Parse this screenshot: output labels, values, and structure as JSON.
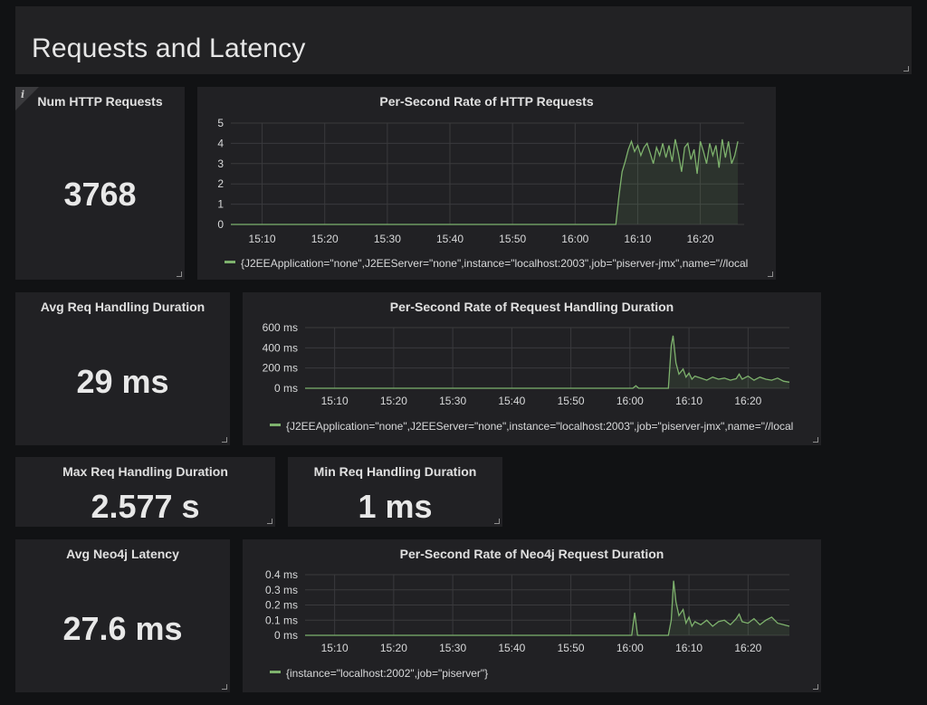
{
  "row": {
    "title": "Requests and Latency"
  },
  "colors": {
    "series": "#7eb26d",
    "panel": "#212124",
    "background": "#111214"
  },
  "stats": {
    "num_http_requests": {
      "title": "Num HTTP Requests",
      "value": "3768",
      "info_icon": "info-icon"
    },
    "avg_req_handling": {
      "title": "Avg Req Handling Duration",
      "value": "29 ms"
    },
    "max_req_handling": {
      "title": "Max Req Handling Duration",
      "value": "2.577 s"
    },
    "min_req_handling": {
      "title": "Min Req Handling Duration",
      "value": "1 ms"
    },
    "avg_neo4j_latency": {
      "title": "Avg Neo4j Latency",
      "value": "27.6 ms"
    }
  },
  "chart_data": [
    {
      "type": "area",
      "title": "Per-Second Rate of HTTP Requests",
      "x_ticks": [
        "15:10",
        "15:20",
        "15:30",
        "15:40",
        "15:50",
        "16:00",
        "16:10",
        "16:20"
      ],
      "y_ticks": [
        "0",
        "1",
        "2",
        "3",
        "4",
        "5"
      ],
      "ylim": [
        0,
        5
      ],
      "xlim_minutes": [
        0,
        82
      ],
      "grid": true,
      "legend": "bottom",
      "series": [
        {
          "name": "{J2EEApplication=\"none\",J2EEServer=\"none\",instance=\"localhost:2003\",job=\"piserver-jmx\",name=\"//local",
          "x": [
            0,
            61.5,
            62,
            62.5,
            63,
            63.5,
            64,
            64.5,
            65,
            65.5,
            66,
            66.5,
            67,
            67.5,
            68,
            68.5,
            69,
            69.5,
            70,
            70.5,
            71,
            71.5,
            72,
            72.5,
            73,
            73.5,
            74,
            74.5,
            75,
            75.5,
            76,
            76.5,
            77,
            77.5,
            78,
            78.5,
            79,
            79.5,
            80,
            80.5,
            81
          ],
          "y": [
            0,
            0,
            1.4,
            2.6,
            3.1,
            3.7,
            4.1,
            3.6,
            3.9,
            3.4,
            3.8,
            4.0,
            3.5,
            3.0,
            3.8,
            3.4,
            4.0,
            3.3,
            3.9,
            3.1,
            4.2,
            3.5,
            2.6,
            3.8,
            4.0,
            3.2,
            3.7,
            2.5,
            4.1,
            3.6,
            3.0,
            4.0,
            3.4,
            3.9,
            2.8,
            4.2,
            3.3,
            4.1,
            3.0,
            3.4,
            4.1
          ]
        }
      ]
    },
    {
      "type": "area",
      "title": "Per-Second Rate of Request Handling Duration",
      "x_ticks": [
        "15:10",
        "15:20",
        "15:30",
        "15:40",
        "15:50",
        "16:00",
        "16:10",
        "16:20"
      ],
      "y_ticks": [
        "0 ms",
        "200 ms",
        "400 ms",
        "600 ms"
      ],
      "ylim": [
        0,
        600
      ],
      "xlim_minutes": [
        0,
        82
      ],
      "grid": true,
      "legend": "bottom",
      "series": [
        {
          "name": "{J2EEApplication=\"none\",J2EEServer=\"none\",instance=\"localhost:2003\",job=\"piserver-jmx\",name=\"//local",
          "x": [
            0,
            55.5,
            56,
            56.5,
            61.5,
            62,
            62.3,
            62.8,
            63.3,
            64,
            64.5,
            65,
            65.5,
            66,
            67,
            68,
            69,
            70,
            71,
            72,
            73,
            73.5,
            74,
            75,
            76,
            77,
            78,
            79,
            80,
            81,
            82
          ],
          "y": [
            0,
            0,
            25,
            0,
            0,
            420,
            520,
            250,
            140,
            190,
            110,
            150,
            90,
            120,
            100,
            80,
            110,
            90,
            100,
            80,
            95,
            140,
            90,
            120,
            80,
            110,
            90,
            80,
            100,
            70,
            60
          ]
        }
      ]
    },
    {
      "type": "area",
      "title": "Per-Second Rate of Neo4j Request Duration",
      "x_ticks": [
        "15:10",
        "15:20",
        "15:30",
        "15:40",
        "15:50",
        "16:00",
        "16:10",
        "16:20"
      ],
      "y_ticks": [
        "0 ms",
        "0.1 ms",
        "0.2 ms",
        "0.3 ms",
        "0.4 ms"
      ],
      "ylim": [
        0,
        0.4
      ],
      "xlim_minutes": [
        0,
        82
      ],
      "grid": true,
      "legend": "bottom",
      "series": [
        {
          "name": "{instance=\"localhost:2002\",job=\"piserver\"}",
          "x": [
            0,
            55.3,
            55.8,
            56.3,
            61.5,
            62,
            62.4,
            62.8,
            63.3,
            64,
            64.5,
            65,
            65.5,
            66,
            67,
            68,
            69,
            70,
            71,
            72,
            73,
            73.5,
            74,
            75,
            76,
            77,
            78,
            79,
            80,
            81,
            82
          ],
          "y": [
            0,
            0,
            0.15,
            0,
            0,
            0.1,
            0.36,
            0.22,
            0.13,
            0.17,
            0.08,
            0.12,
            0.06,
            0.09,
            0.07,
            0.1,
            0.06,
            0.09,
            0.1,
            0.07,
            0.11,
            0.14,
            0.09,
            0.08,
            0.11,
            0.07,
            0.1,
            0.12,
            0.08,
            0.07,
            0.06
          ]
        }
      ]
    }
  ]
}
